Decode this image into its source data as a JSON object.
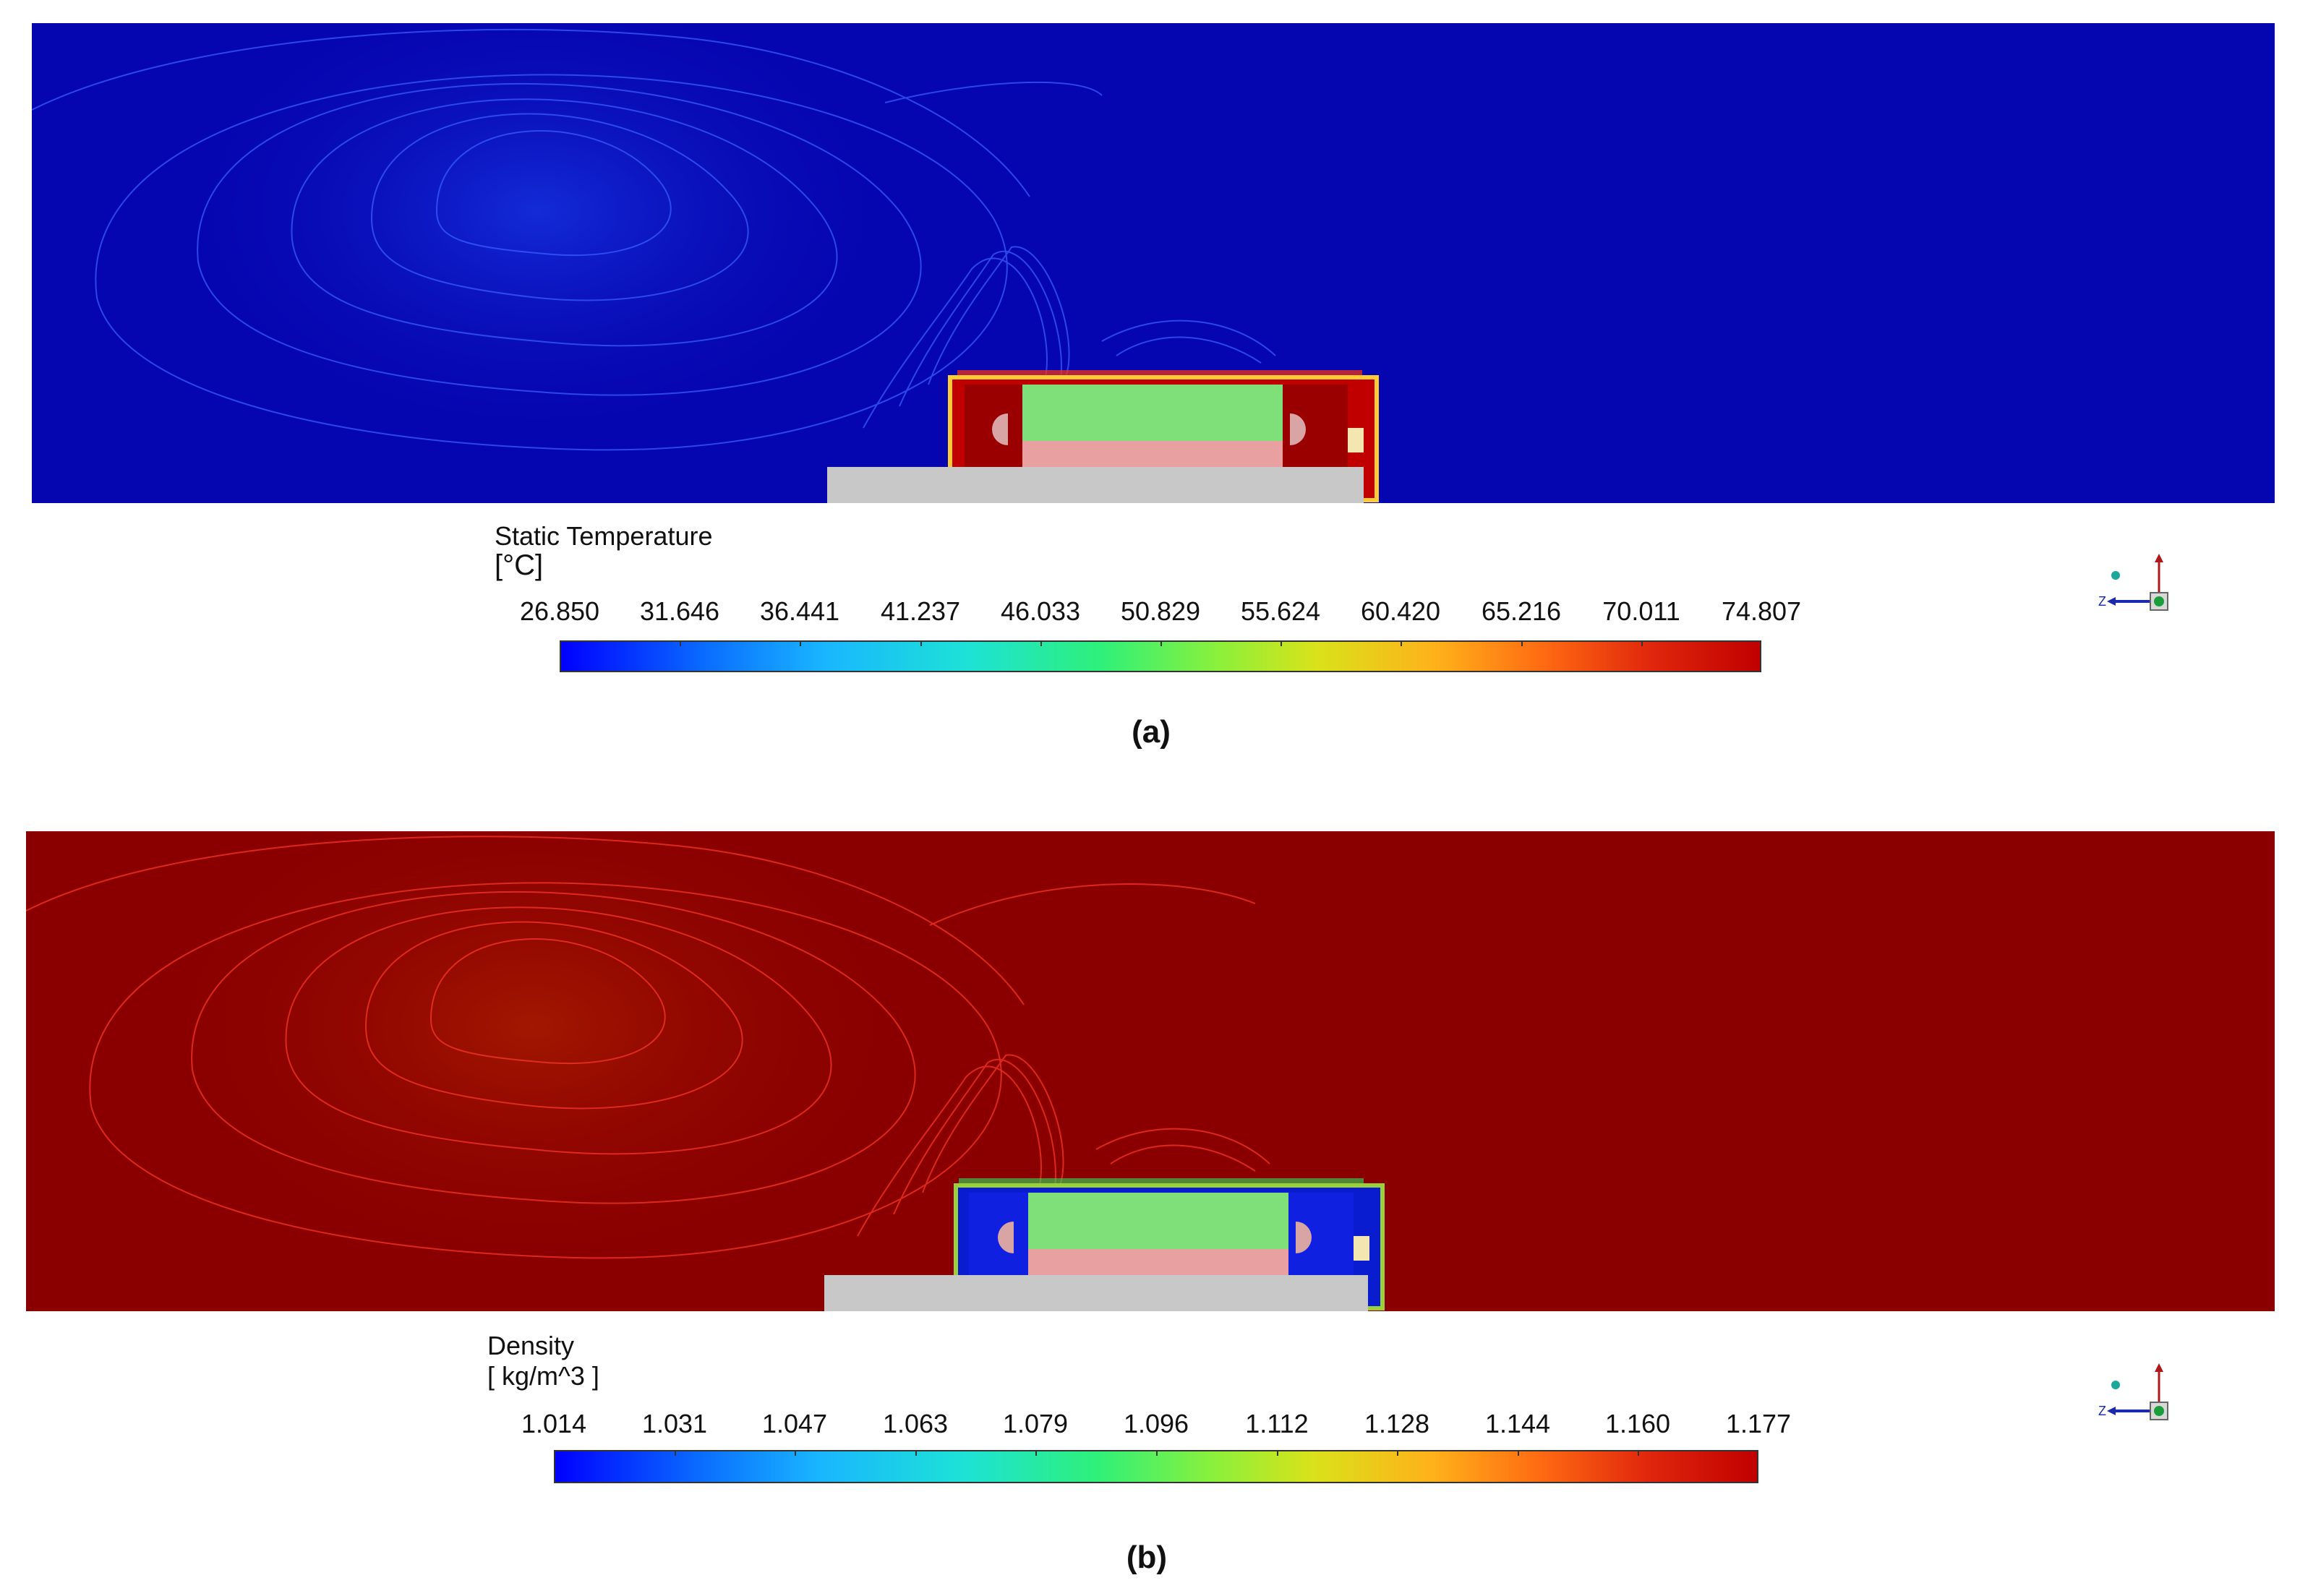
{
  "panels": [
    {
      "caption": "(a)",
      "legend_title": "Static Temperature",
      "legend_unit": "[°C]",
      "ticks": [
        "26.850",
        "31.646",
        "36.441",
        "41.237",
        "46.033",
        "50.829",
        "55.624",
        "60.420",
        "65.216",
        "70.011",
        "74.807"
      ],
      "background_color": "#0606b0",
      "contour_color": "#3a5cff"
    },
    {
      "caption": "(b)",
      "legend_title": "Density",
      "legend_unit": "[ kg/m^3 ]",
      "ticks": [
        "1.014",
        "1.031",
        "1.047",
        "1.063",
        "1.079",
        "1.096",
        "1.112",
        "1.128",
        "1.144",
        "1.160",
        "1.177"
      ],
      "background_color": "#8a0000",
      "contour_color": "#ff3a2a"
    }
  ],
  "axis_triad": {
    "z_label": "Z",
    "icon": "coordinate-axes-icon"
  }
}
